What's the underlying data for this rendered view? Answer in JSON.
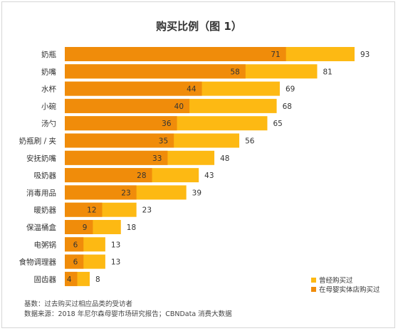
{
  "chart_data": {
    "type": "bar",
    "orientation": "horizontal",
    "title": "购买比例（图 1）",
    "categories": [
      "奶瓶",
      "奶嘴",
      "水杯",
      "小碗",
      "汤勺",
      "奶瓶刷 / 夹",
      "安抚奶嘴",
      "吸奶器",
      "消毒用品",
      "暖奶器",
      "保温桶盒",
      "电粥锅",
      "食物调理器",
      "固齿器"
    ],
    "series": [
      {
        "name": "曾经购买过",
        "color": "#fdb913",
        "values": [
          93,
          81,
          69,
          68,
          65,
          56,
          48,
          43,
          39,
          23,
          18,
          13,
          13,
          8
        ]
      },
      {
        "name": "在母婴实体店购买过",
        "color": "#f08c0a",
        "values": [
          71,
          58,
          44,
          40,
          36,
          35,
          33,
          28,
          23,
          12,
          9,
          6,
          6,
          4
        ]
      }
    ],
    "xlim": [
      0,
      100
    ],
    "grid": false,
    "legend_position": "bottom-right",
    "xlabel": "",
    "ylabel": ""
  },
  "footnotes": {
    "base": "基数：过去购买过相应品类的受访者",
    "source": "数据来源：2018 年尼尔森母婴市场研究报告；CBNData 消费大数据"
  }
}
